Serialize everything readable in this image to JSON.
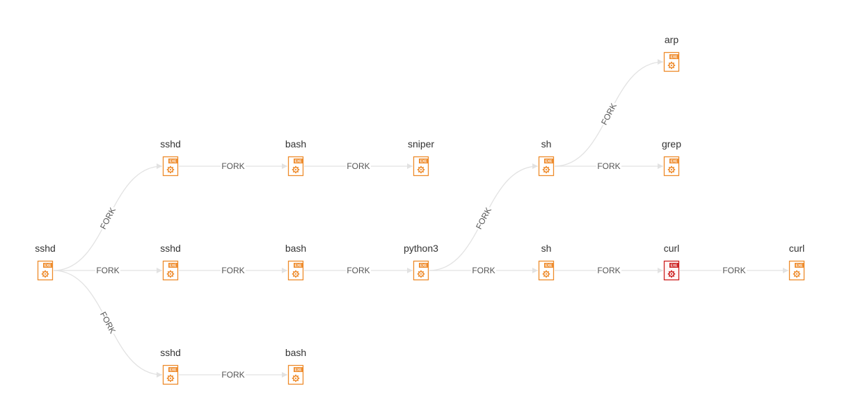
{
  "graph": {
    "nodes": [
      {
        "id": "n1",
        "label": "sshd",
        "state": "normal"
      },
      {
        "id": "n2",
        "label": "sshd",
        "state": "normal"
      },
      {
        "id": "n3",
        "label": "sshd",
        "state": "normal"
      },
      {
        "id": "n4",
        "label": "sshd",
        "state": "normal"
      },
      {
        "id": "n5",
        "label": "bash",
        "state": "normal"
      },
      {
        "id": "n6",
        "label": "bash",
        "state": "normal"
      },
      {
        "id": "n7",
        "label": "bash",
        "state": "normal"
      },
      {
        "id": "n8",
        "label": "sniper",
        "state": "normal"
      },
      {
        "id": "n9",
        "label": "python3",
        "state": "normal"
      },
      {
        "id": "n10",
        "label": "sh",
        "state": "normal"
      },
      {
        "id": "n11",
        "label": "sh",
        "state": "normal"
      },
      {
        "id": "n12",
        "label": "arp",
        "state": "normal"
      },
      {
        "id": "n13",
        "label": "grep",
        "state": "normal"
      },
      {
        "id": "n14",
        "label": "curl",
        "state": "alert"
      },
      {
        "id": "n15",
        "label": "curl",
        "state": "normal"
      }
    ],
    "edges": [
      {
        "from": "n1",
        "to": "n2",
        "label": "FORK"
      },
      {
        "from": "n1",
        "to": "n3",
        "label": "FORK"
      },
      {
        "from": "n1",
        "to": "n4",
        "label": "FORK"
      },
      {
        "from": "n2",
        "to": "n5",
        "label": "FORK"
      },
      {
        "from": "n5",
        "to": "n8",
        "label": "FORK"
      },
      {
        "from": "n3",
        "to": "n6",
        "label": "FORK"
      },
      {
        "from": "n6",
        "to": "n9",
        "label": "FORK"
      },
      {
        "from": "n9",
        "to": "n10",
        "label": "FORK"
      },
      {
        "from": "n9",
        "to": "n11",
        "label": "FORK"
      },
      {
        "from": "n10",
        "to": "n12",
        "label": "FORK"
      },
      {
        "from": "n10",
        "to": "n13",
        "label": "FORK"
      },
      {
        "from": "n11",
        "to": "n14",
        "label": "FORK"
      },
      {
        "from": "n14",
        "to": "n15",
        "label": "FORK"
      },
      {
        "from": "n4",
        "to": "n7",
        "label": "FORK"
      }
    ],
    "node_icon": {
      "name": "executable-file-icon",
      "tag_text": "EXE"
    },
    "colors": {
      "node_normal": "#ee8a2a",
      "node_alert": "#cc1f1f",
      "edge": "#e2e2e2",
      "label_text": "#333333",
      "edge_label_text": "#555555"
    }
  }
}
